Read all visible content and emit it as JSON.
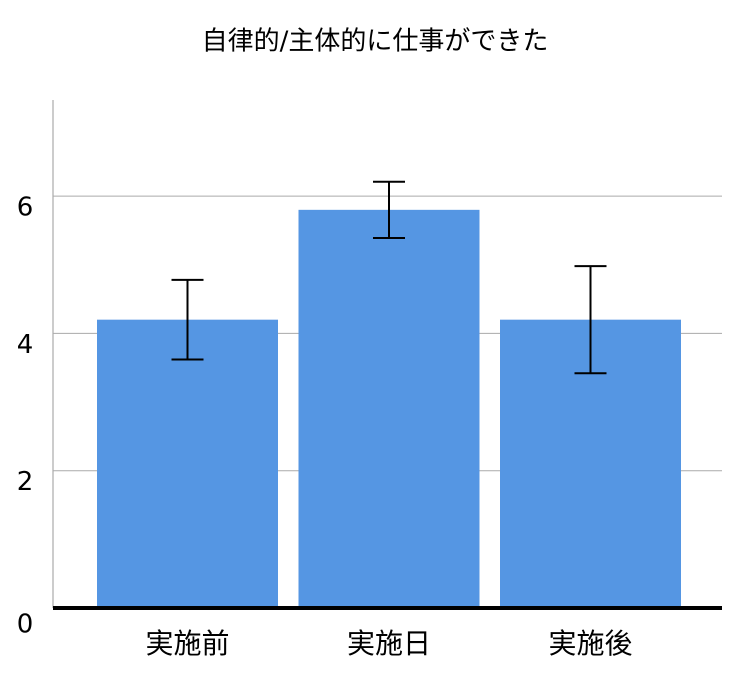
{
  "chart_data": {
    "type": "bar",
    "title": "自律的/主体的に仕事ができた",
    "categories": [
      "実施前",
      "実施日",
      "実施後"
    ],
    "values": [
      4.2,
      5.8,
      4.2
    ],
    "errors": [
      0.58,
      0.41,
      0.78
    ],
    "color": "#5596e3",
    "ylim": [
      0,
      7.4
    ],
    "yticks": [
      0,
      2,
      4,
      6
    ],
    "grid": true
  }
}
